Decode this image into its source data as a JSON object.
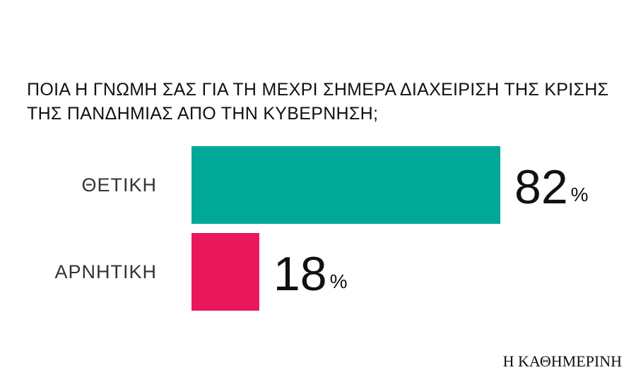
{
  "chart_data": {
    "type": "bar",
    "orientation": "horizontal",
    "title": "ΠΟΙΑ Η ΓΝΩΜΗ ΣΑΣ ΓΙΑ ΤΗ ΜΕΧΡΙ ΣΗΜΕΡΑ ΔΙΑΧΕΙΡΙΣΗ ΤΗΣ ΚΡΙΣΗΣ ΤΗΣ ΠΑΝΔΗΜΙΑΣ ΑΠΟ ΤΗΝ ΚΥΒΕΡΝΗΣΗ;",
    "categories": [
      "ΘΕΤΙΚΗ",
      "ΑΡΝΗΤΙΚΗ"
    ],
    "values": [
      82,
      18
    ],
    "value_labels": [
      "82%",
      "18%"
    ],
    "colors": [
      "#00a898",
      "#e8185a"
    ],
    "source": "Η ΚΑΘΗΜΕΡΙΝΗ"
  }
}
